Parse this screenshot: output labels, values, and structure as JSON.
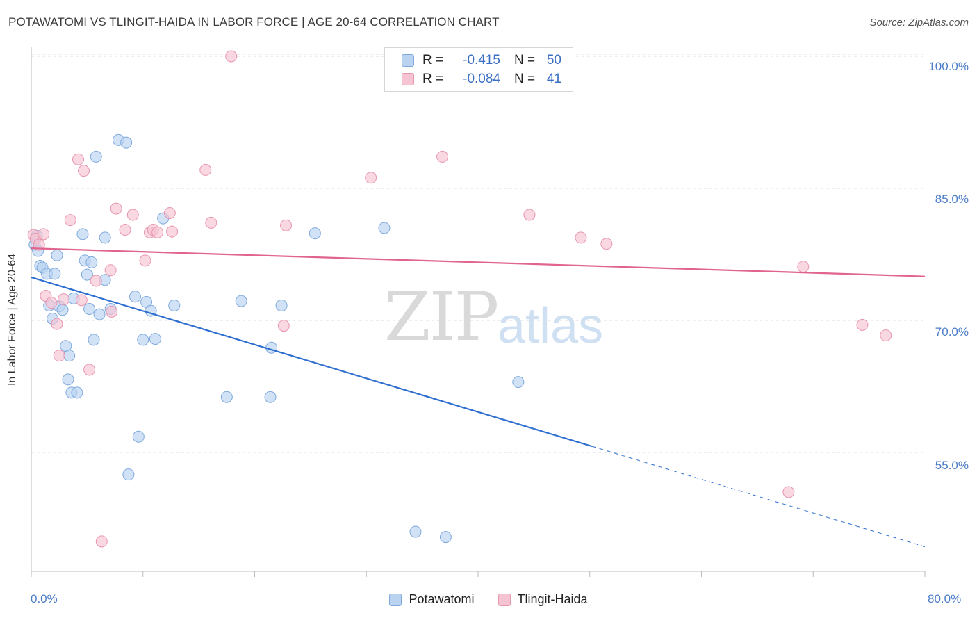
{
  "title": "POTAWATOMI VS TLINGIT-HAIDA IN LABOR FORCE | AGE 20-64 CORRELATION CHART",
  "source": "Source: ZipAtlas.com",
  "watermark": {
    "zip": "ZIP",
    "atlas": "atlas"
  },
  "legend": {
    "rows": [
      {
        "r_label": "R =",
        "r_value": "-0.415",
        "n_label": "N =",
        "n_value": "50"
      },
      {
        "r_label": "R =",
        "r_value": "-0.084",
        "n_label": "N =",
        "n_value": "41"
      }
    ]
  },
  "colors": {
    "blue_fill": "#b9d3f1",
    "blue_stroke": "#7ea9dc",
    "blue_line": "#2e6fd0",
    "pink_fill": "#f6c3d3",
    "pink_stroke": "#e895b0",
    "pink_line": "#e0648e",
    "tick_text": "#4a7cc7",
    "grid": "#dcdcdc"
  },
  "chart_data": {
    "type": "scatter",
    "title": "POTAWATOMI VS TLINGIT-HAIDA IN LABOR FORCE | AGE 20-64 CORRELATION CHART",
    "xlabel": "",
    "ylabel": "In Labor Force | Age 20-64",
    "xlim": [
      0,
      80
    ],
    "ylim": [
      41.5,
      101.5
    ],
    "x_tick_labels": [
      "0.0%",
      "80.0%"
    ],
    "y_ticks": [
      100,
      85,
      70,
      55
    ],
    "y_tick_labels": [
      "100.0%",
      "85.0%",
      "70.0%",
      "55.0%"
    ],
    "series": [
      {
        "name": "Potawatomi",
        "r": -0.415,
        "n": 50,
        "trend": {
          "x0": 0,
          "y0": 74.9,
          "x1": 50.2,
          "y1": 55.7,
          "dash_x1": 80,
          "dash_y1": 44.3
        },
        "points": [
          [
            0.3,
            78.6
          ],
          [
            0.6,
            77.9
          ],
          [
            0.8,
            76.2
          ],
          [
            1.0,
            76.0
          ],
          [
            1.4,
            75.3
          ],
          [
            1.6,
            71.7
          ],
          [
            1.9,
            70.2
          ],
          [
            2.1,
            75.3
          ],
          [
            2.3,
            77.4
          ],
          [
            2.5,
            71.6
          ],
          [
            2.8,
            71.2
          ],
          [
            3.1,
            67.1
          ],
          [
            3.4,
            66.0
          ],
          [
            3.3,
            63.3
          ],
          [
            3.6,
            61.8
          ],
          [
            4.1,
            61.8
          ],
          [
            4.6,
            79.8
          ],
          [
            4.8,
            76.8
          ],
          [
            5.0,
            75.2
          ],
          [
            5.2,
            71.3
          ],
          [
            5.4,
            76.6
          ],
          [
            5.6,
            67.8
          ],
          [
            5.8,
            88.6
          ],
          [
            6.1,
            70.7
          ],
          [
            6.6,
            74.6
          ],
          [
            7.1,
            71.3
          ],
          [
            7.8,
            90.5
          ],
          [
            8.5,
            90.2
          ],
          [
            8.7,
            52.5
          ],
          [
            9.6,
            56.8
          ],
          [
            10.0,
            67.8
          ],
          [
            10.3,
            72.1
          ],
          [
            10.7,
            71.1
          ],
          [
            11.1,
            67.9
          ],
          [
            11.8,
            81.6
          ],
          [
            12.8,
            71.7
          ],
          [
            17.5,
            61.3
          ],
          [
            18.8,
            72.2
          ],
          [
            21.4,
            61.3
          ],
          [
            21.5,
            66.9
          ],
          [
            22.4,
            71.7
          ],
          [
            25.4,
            79.9
          ],
          [
            31.6,
            80.5
          ],
          [
            34.4,
            46.0
          ],
          [
            37.1,
            45.4
          ],
          [
            43.6,
            63.0
          ],
          [
            0.5,
            79.6
          ],
          [
            3.8,
            72.5
          ],
          [
            9.3,
            72.7
          ],
          [
            6.6,
            79.4
          ]
        ]
      },
      {
        "name": "Tlingit-Haida",
        "r": -0.084,
        "n": 41,
        "trend": {
          "x0": 0,
          "y0": 78.2,
          "x1": 80,
          "y1": 75.0
        },
        "points": [
          [
            0.2,
            79.7
          ],
          [
            0.4,
            79.3
          ],
          [
            0.7,
            78.6
          ],
          [
            1.1,
            79.8
          ],
          [
            1.3,
            72.8
          ],
          [
            1.8,
            72.0
          ],
          [
            2.3,
            69.6
          ],
          [
            2.5,
            66.0
          ],
          [
            2.9,
            72.4
          ],
          [
            3.5,
            81.4
          ],
          [
            4.2,
            88.3
          ],
          [
            4.5,
            72.3
          ],
          [
            4.7,
            87.0
          ],
          [
            5.2,
            64.4
          ],
          [
            5.8,
            74.5
          ],
          [
            6.3,
            44.9
          ],
          [
            7.1,
            75.7
          ],
          [
            7.2,
            71.0
          ],
          [
            7.6,
            82.7
          ],
          [
            8.4,
            80.3
          ],
          [
            9.1,
            82.0
          ],
          [
            10.2,
            76.8
          ],
          [
            10.6,
            80.0
          ],
          [
            10.9,
            80.3
          ],
          [
            11.3,
            80.0
          ],
          [
            12.4,
            82.2
          ],
          [
            12.6,
            80.1
          ],
          [
            15.6,
            87.1
          ],
          [
            16.1,
            81.1
          ],
          [
            17.9,
            100.0
          ],
          [
            22.6,
            69.4
          ],
          [
            22.8,
            80.8
          ],
          [
            30.4,
            86.2
          ],
          [
            36.8,
            88.6
          ],
          [
            44.6,
            82.0
          ],
          [
            49.2,
            79.4
          ],
          [
            51.5,
            78.7
          ],
          [
            69.1,
            76.1
          ],
          [
            67.8,
            50.5
          ],
          [
            74.4,
            69.5
          ],
          [
            76.5,
            68.3
          ]
        ]
      }
    ]
  },
  "bottom_legend": [
    "Potawatomi",
    "Tlingit-Haida"
  ]
}
